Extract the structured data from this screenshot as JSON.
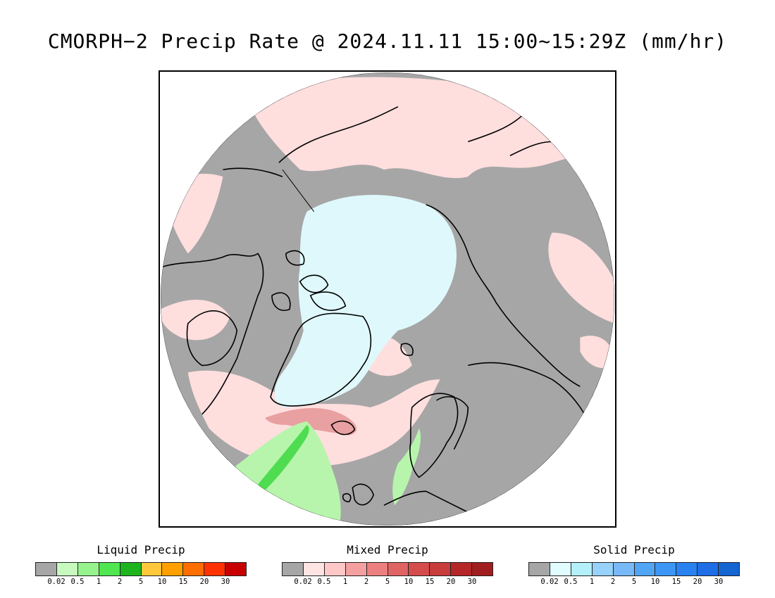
{
  "title": "CMORPH−2 Precip Rate @ 2024.11.11 15:00~15:29Z (mm/hr)",
  "map": {
    "projection": "north-polar-stereographic",
    "colors": {
      "no_precip": "#a6a6a6",
      "mixed_light": "#ffdede",
      "snow_light": "#dff8fb",
      "liquid_light": "#b7f5ac",
      "liquid_medium": "#50dc50",
      "mixed_medium": "#e9a0a0",
      "coastline": "#000000"
    }
  },
  "legends": [
    {
      "name": "liquid",
      "title": "Liquid Precip",
      "colors": [
        "#a6a6a6",
        "#c8fac0",
        "#96f28c",
        "#50e650",
        "#1eb41e",
        "#ffc83c",
        "#ffa000",
        "#ff6e00",
        "#ff3200",
        "#c80000"
      ],
      "ticks": [
        "0.02",
        "0.5",
        "1",
        "2",
        "5",
        "10",
        "15",
        "20",
        "30"
      ]
    },
    {
      "name": "mixed",
      "title": "Mixed Precip",
      "colors": [
        "#a6a6a6",
        "#ffe4e4",
        "#ffc8c8",
        "#f4a0a0",
        "#ec8080",
        "#e06464",
        "#d44c4c",
        "#c83c3c",
        "#b42828",
        "#a01e1e"
      ],
      "ticks": [
        "0.02",
        "0.5",
        "1",
        "2",
        "5",
        "10",
        "15",
        "20",
        "30"
      ]
    },
    {
      "name": "solid",
      "title": "Solid Precip",
      "colors": [
        "#a6a6a6",
        "#e0fcff",
        "#b4f0fa",
        "#96d2fa",
        "#78b9fa",
        "#50a5f5",
        "#3c96f5",
        "#2882f0",
        "#1e6ee6",
        "#1464d2"
      ],
      "ticks": [
        "0.02",
        "0.5",
        "1",
        "2",
        "5",
        "10",
        "15",
        "20",
        "30"
      ]
    }
  ]
}
